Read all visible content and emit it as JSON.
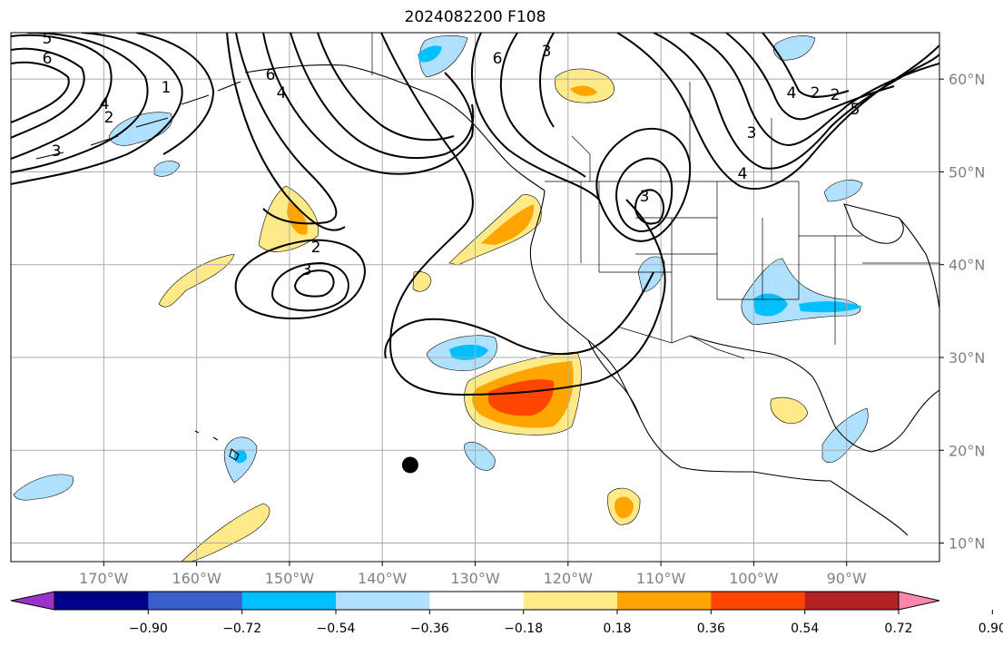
{
  "title": "2024082200 F108",
  "map": {
    "projection": "plate-carree",
    "lon_range": [
      -180,
      -80
    ],
    "lat_range": [
      8,
      65
    ],
    "lat_labels": [
      "60°N",
      "50°N",
      "40°N",
      "30°N",
      "20°N",
      "10°N"
    ],
    "lon_labels": [
      "170°W",
      "160°W",
      "150°W",
      "140°W",
      "130°W",
      "120°W",
      "110°W",
      "100°W",
      "90°W"
    ],
    "gridlines": true,
    "storm_marker": {
      "lon": -137,
      "lat": 19
    }
  },
  "contour_labels": [
    "5",
    "6",
    "4",
    "2",
    "3",
    "1",
    "4",
    "6",
    "3",
    "2",
    "6",
    "3",
    "4",
    "2",
    "5",
    "3",
    "4",
    "2",
    "3"
  ],
  "colorbar": {
    "ticks": [
      "−0.90",
      "−0.72",
      "−0.54",
      "−0.36",
      "−0.18",
      "0.18",
      "0.36",
      "0.54",
      "0.72",
      "0.90"
    ],
    "colors": [
      "#9932cc",
      "#00008b",
      "#3a5fcd",
      "#00bfff",
      "#afe0ff",
      "#ffffff",
      "#ffea8a",
      "#ffa500",
      "#ff4500",
      "#b22222",
      "#ff88aa"
    ]
  }
}
